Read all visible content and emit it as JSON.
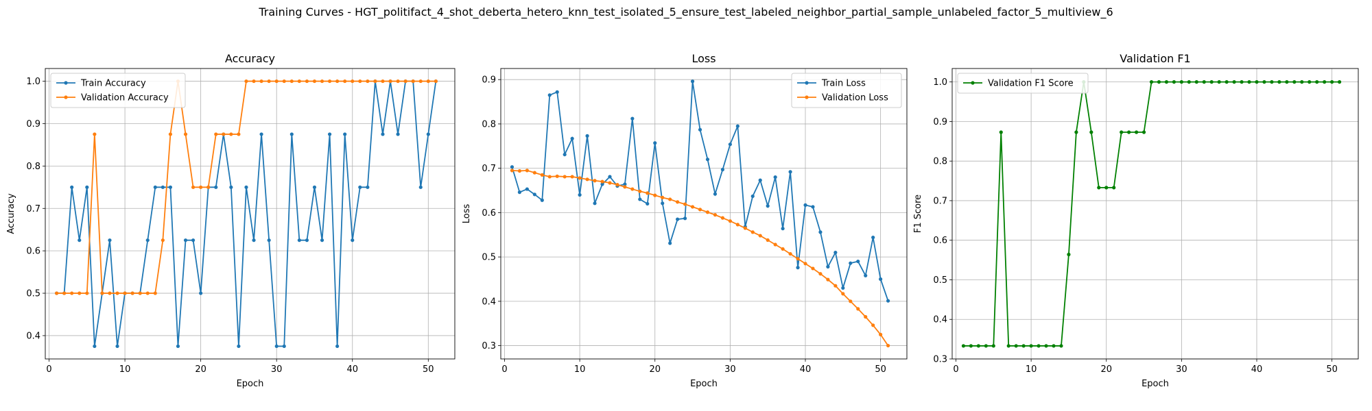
{
  "suptitle": "Training Curves - HGT_politifact_4_shot_deberta_hetero_knn_test_isolated_5_ensure_test_labeled_neighbor_partial_sample_unlabeled_factor_5_multiview_6",
  "colors": {
    "blue": "#1f77b4",
    "orange": "#ff7f0e",
    "green": "#008000",
    "grid": "#b0b0b0"
  },
  "chart_data": [
    {
      "type": "line",
      "title": "Accuracy",
      "xlabel": "Epoch",
      "ylabel": "Accuracy",
      "xlim": [
        -0.5,
        53.5
      ],
      "ylim": [
        0.345,
        1.03
      ],
      "xticks": [
        0,
        10,
        20,
        30,
        40,
        50
      ],
      "yticks": [
        0.4,
        0.5,
        0.6,
        0.7,
        0.8,
        0.9,
        1.0
      ],
      "ytick_labels": [
        "0.4",
        "0.5",
        "0.6",
        "0.7",
        "0.8",
        "0.9",
        "1.0"
      ],
      "grid": true,
      "legend": "upper-left",
      "x": [
        1,
        2,
        3,
        4,
        5,
        6,
        7,
        8,
        9,
        10,
        11,
        12,
        13,
        14,
        15,
        16,
        17,
        18,
        19,
        20,
        21,
        22,
        23,
        24,
        25,
        26,
        27,
        28,
        29,
        30,
        31,
        32,
        33,
        34,
        35,
        36,
        37,
        38,
        39,
        40,
        41,
        42,
        43,
        44,
        45,
        46,
        47,
        48,
        49,
        50,
        51
      ],
      "series": [
        {
          "name": "Train Accuracy",
          "color": "#1f77b4",
          "values": [
            0.5,
            0.5,
            0.75,
            0.625,
            0.75,
            0.375,
            0.5,
            0.625,
            0.375,
            0.5,
            0.5,
            0.5,
            0.625,
            0.75,
            0.75,
            0.75,
            0.375,
            0.625,
            0.625,
            0.5,
            0.75,
            0.75,
            0.875,
            0.75,
            0.375,
            0.75,
            0.625,
            0.875,
            0.625,
            0.375,
            0.375,
            0.875,
            0.625,
            0.625,
            0.75,
            0.625,
            0.875,
            0.375,
            0.875,
            0.625,
            0.75,
            0.75,
            1.0,
            0.875,
            1.0,
            0.875,
            1.0,
            1.0,
            0.75,
            0.875,
            1.0
          ]
        },
        {
          "name": "Validation Accuracy",
          "color": "#ff7f0e",
          "values": [
            0.5,
            0.5,
            0.5,
            0.5,
            0.5,
            0.875,
            0.5,
            0.5,
            0.5,
            0.5,
            0.5,
            0.5,
            0.5,
            0.5,
            0.625,
            0.875,
            1.0,
            0.875,
            0.75,
            0.75,
            0.75,
            0.875,
            0.875,
            0.875,
            0.875,
            1.0,
            1.0,
            1.0,
            1.0,
            1.0,
            1.0,
            1.0,
            1.0,
            1.0,
            1.0,
            1.0,
            1.0,
            1.0,
            1.0,
            1.0,
            1.0,
            1.0,
            1.0,
            1.0,
            1.0,
            1.0,
            1.0,
            1.0,
            1.0,
            1.0,
            1.0
          ]
        }
      ]
    },
    {
      "type": "line",
      "title": "Loss",
      "xlabel": "Epoch",
      "ylabel": "Loss",
      "xlim": [
        -0.5,
        53.5
      ],
      "ylim": [
        0.27,
        0.925
      ],
      "xticks": [
        0,
        10,
        20,
        30,
        40,
        50
      ],
      "yticks": [
        0.3,
        0.4,
        0.5,
        0.6,
        0.7,
        0.8,
        0.9
      ],
      "ytick_labels": [
        "0.3",
        "0.4",
        "0.5",
        "0.6",
        "0.7",
        "0.8",
        "0.9"
      ],
      "grid": true,
      "legend": "upper-right",
      "x": [
        1,
        2,
        3,
        4,
        5,
        6,
        7,
        8,
        9,
        10,
        11,
        12,
        13,
        14,
        15,
        16,
        17,
        18,
        19,
        20,
        21,
        22,
        23,
        24,
        25,
        26,
        27,
        28,
        29,
        30,
        31,
        32,
        33,
        34,
        35,
        36,
        37,
        38,
        39,
        40,
        41,
        42,
        43,
        44,
        45,
        46,
        47,
        48,
        49,
        50,
        51
      ],
      "series": [
        {
          "name": "Train Loss",
          "color": "#1f77b4",
          "values": [
            0.703,
            0.646,
            0.653,
            0.641,
            0.628,
            0.865,
            0.872,
            0.731,
            0.767,
            0.64,
            0.773,
            0.621,
            0.664,
            0.681,
            0.66,
            0.664,
            0.812,
            0.63,
            0.62,
            0.757,
            0.621,
            0.531,
            0.585,
            0.587,
            0.896,
            0.787,
            0.72,
            0.642,
            0.697,
            0.754,
            0.795,
            0.568,
            0.637,
            0.673,
            0.615,
            0.68,
            0.564,
            0.692,
            0.476,
            0.617,
            0.613,
            0.556,
            0.478,
            0.51,
            0.43,
            0.486,
            0.49,
            0.458,
            0.544,
            0.45,
            0.401
          ]
        },
        {
          "name": "Validation Loss",
          "color": "#ff7f0e",
          "values": [
            0.695,
            0.694,
            0.695,
            0.69,
            0.685,
            0.681,
            0.682,
            0.681,
            0.681,
            0.678,
            0.675,
            0.672,
            0.67,
            0.667,
            0.663,
            0.658,
            0.653,
            0.648,
            0.644,
            0.639,
            0.634,
            0.63,
            0.624,
            0.619,
            0.613,
            0.607,
            0.601,
            0.595,
            0.588,
            0.581,
            0.573,
            0.565,
            0.556,
            0.548,
            0.538,
            0.528,
            0.518,
            0.507,
            0.496,
            0.485,
            0.474,
            0.462,
            0.449,
            0.435,
            0.417,
            0.4,
            0.383,
            0.365,
            0.346,
            0.325,
            0.3
          ]
        }
      ]
    },
    {
      "type": "line",
      "title": "Validation F1",
      "xlabel": "Epoch",
      "ylabel": "F1 Score",
      "xlim": [
        -0.5,
        53.5
      ],
      "ylim": [
        0.3,
        1.034
      ],
      "xticks": [
        0,
        10,
        20,
        30,
        40,
        50
      ],
      "yticks": [
        0.3,
        0.4,
        0.5,
        0.6,
        0.7,
        0.8,
        0.9,
        1.0
      ],
      "ytick_labels": [
        "0.3",
        "0.4",
        "0.5",
        "0.6",
        "0.7",
        "0.8",
        "0.9",
        "1.0"
      ],
      "grid": true,
      "legend": "upper-left",
      "x": [
        1,
        2,
        3,
        4,
        5,
        6,
        7,
        8,
        9,
        10,
        11,
        12,
        13,
        14,
        15,
        16,
        17,
        18,
        19,
        20,
        21,
        22,
        23,
        24,
        25,
        26,
        27,
        28,
        29,
        30,
        31,
        32,
        33,
        34,
        35,
        36,
        37,
        38,
        39,
        40,
        41,
        42,
        43,
        44,
        45,
        46,
        47,
        48,
        49,
        50,
        51
      ],
      "series": [
        {
          "name": "Validation F1 Score",
          "color": "#008000",
          "values": [
            0.333,
            0.333,
            0.333,
            0.333,
            0.333,
            0.873,
            0.333,
            0.333,
            0.333,
            0.333,
            0.333,
            0.333,
            0.333,
            0.333,
            0.564,
            0.873,
            1.0,
            0.873,
            0.733,
            0.733,
            0.733,
            0.873,
            0.873,
            0.873,
            0.873,
            1.0,
            1.0,
            1.0,
            1.0,
            1.0,
            1.0,
            1.0,
            1.0,
            1.0,
            1.0,
            1.0,
            1.0,
            1.0,
            1.0,
            1.0,
            1.0,
            1.0,
            1.0,
            1.0,
            1.0,
            1.0,
            1.0,
            1.0,
            1.0,
            1.0,
            1.0
          ]
        }
      ]
    }
  ]
}
